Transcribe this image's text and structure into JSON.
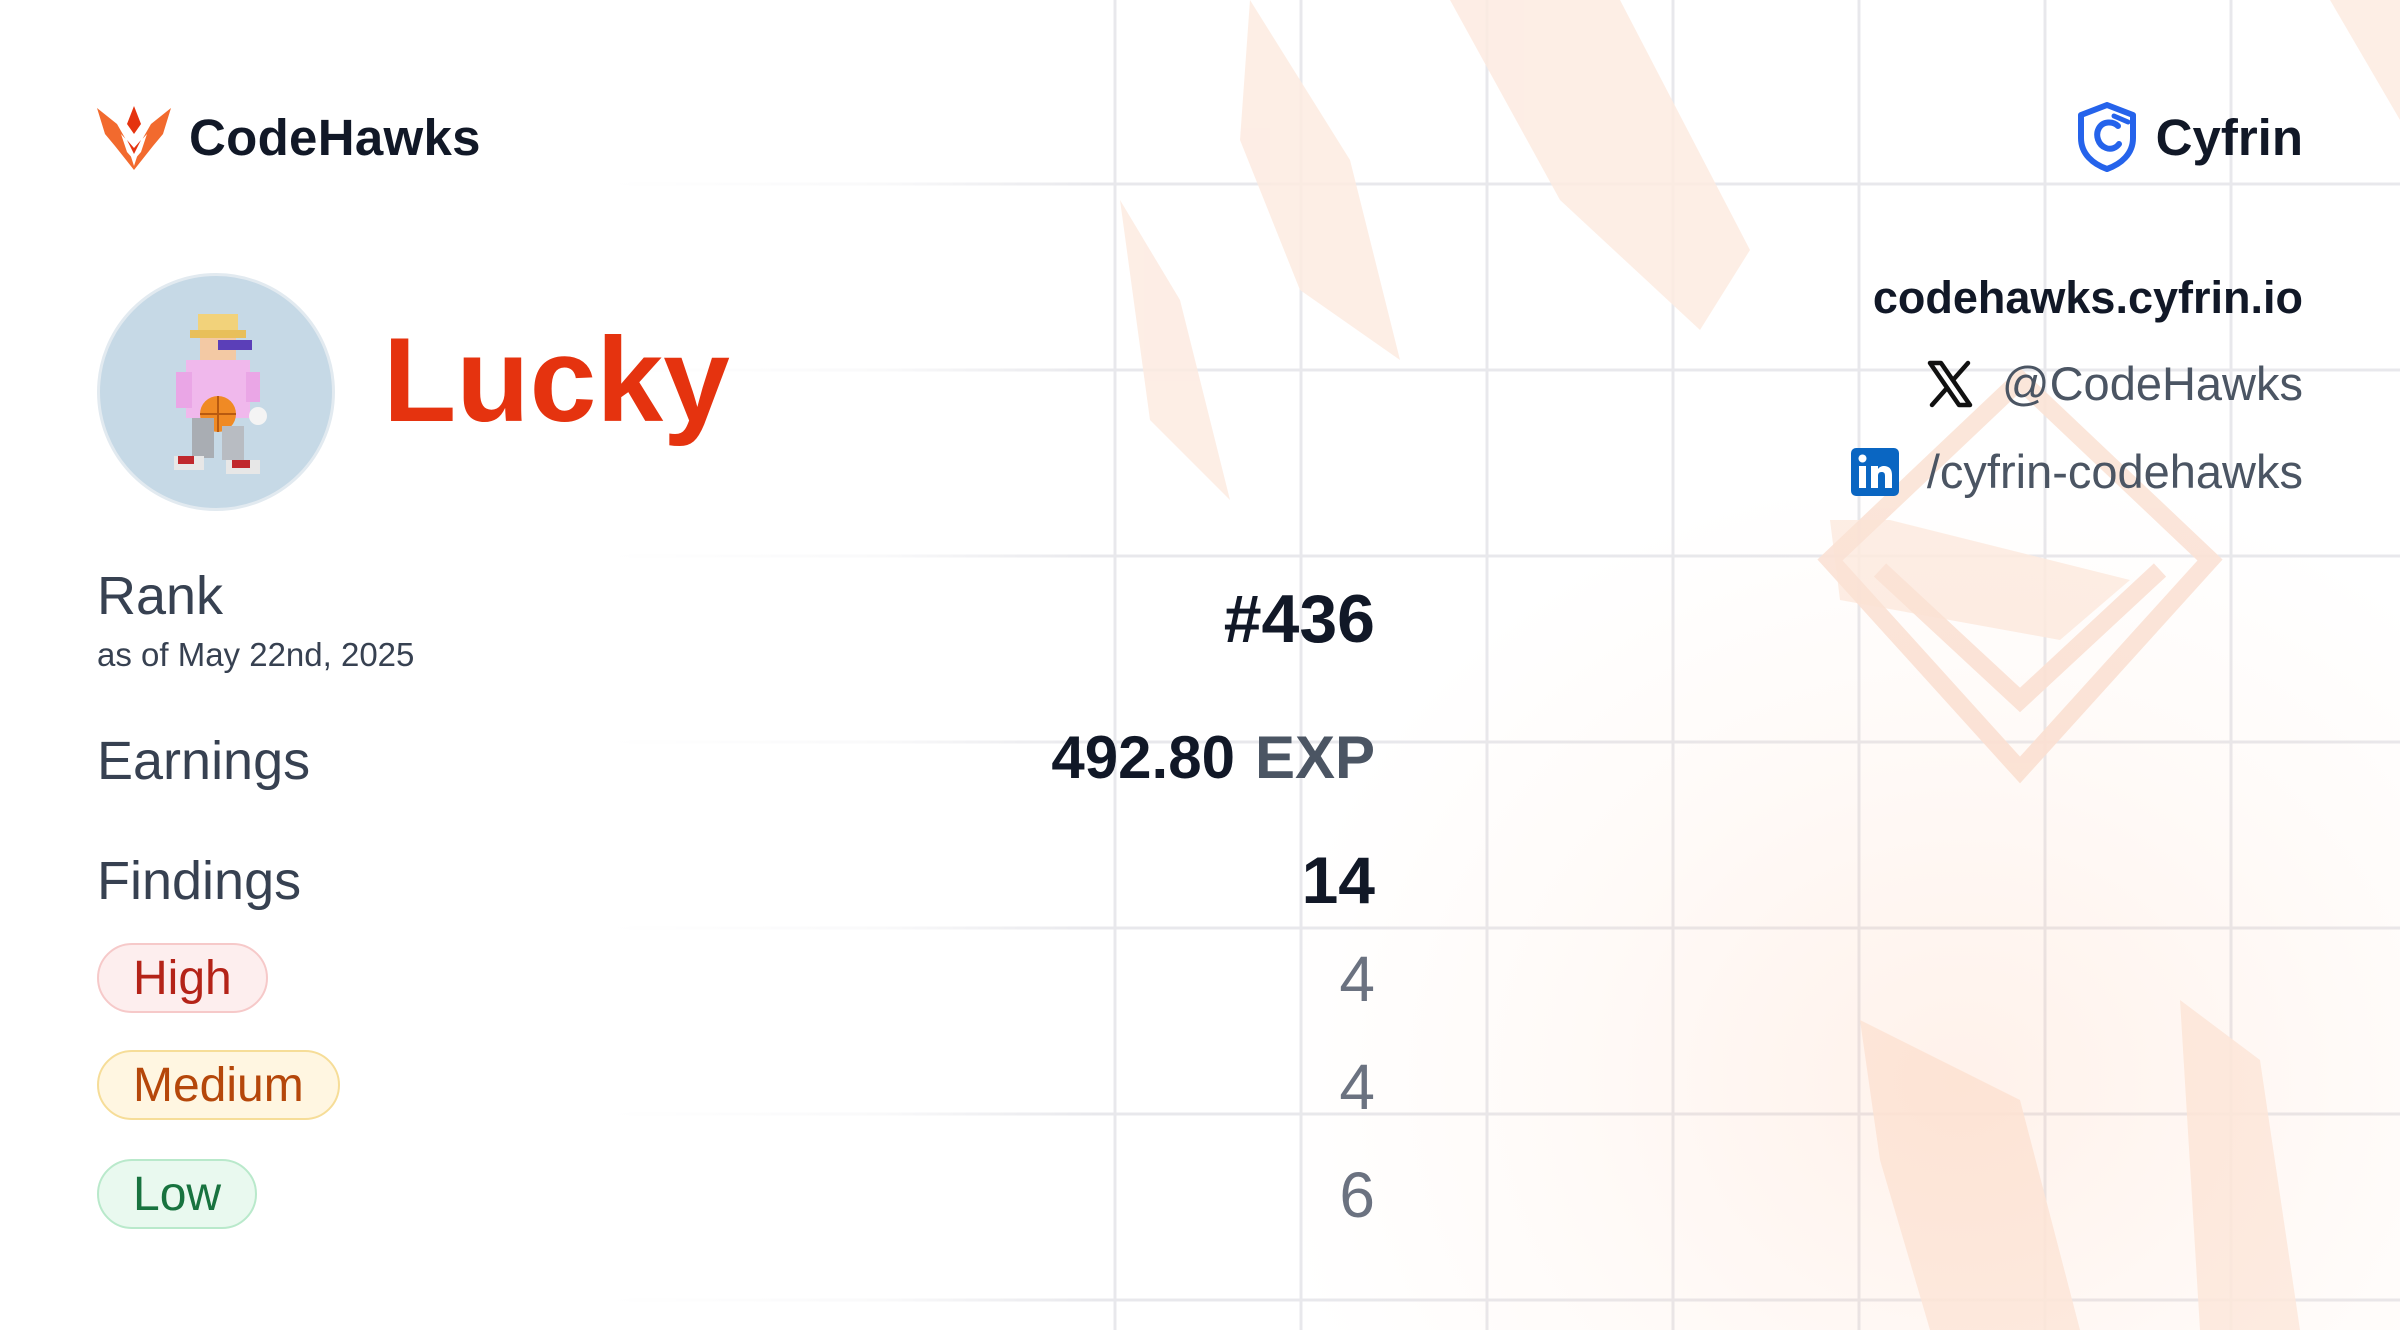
{
  "header": {
    "brand_name": "CodeHawks",
    "brand_icon": "hawk-logo-icon",
    "partner_name": "Cyfrin",
    "partner_icon": "cyfrin-shield-logo-icon"
  },
  "profile": {
    "username": "Lucky",
    "avatar": "pixel-character-avatar"
  },
  "socials": {
    "website": "codehawks.cyfrin.io",
    "x_handle": "@CodeHawks",
    "x_icon": "x-logo-icon",
    "linkedin": "/cyfrin-codehawks",
    "linkedin_icon": "linkedin-logo-icon"
  },
  "stats": {
    "rank_label": "Rank",
    "rank_date": "as of May 22nd, 2025",
    "rank_value": "#436",
    "earnings_label": "Earnings",
    "earnings_value": "492.80",
    "earnings_unit": "EXP",
    "findings_label": "Findings",
    "findings_total": "14",
    "severities": [
      {
        "label": "High",
        "count": "4",
        "color": "#b42318"
      },
      {
        "label": "Medium",
        "count": "4",
        "color": "#b5470a"
      },
      {
        "label": "Low",
        "count": "6",
        "color": "#18733f"
      }
    ]
  },
  "colors": {
    "accent": "#e5330f",
    "text": "#111827",
    "muted": "#4b5563"
  }
}
